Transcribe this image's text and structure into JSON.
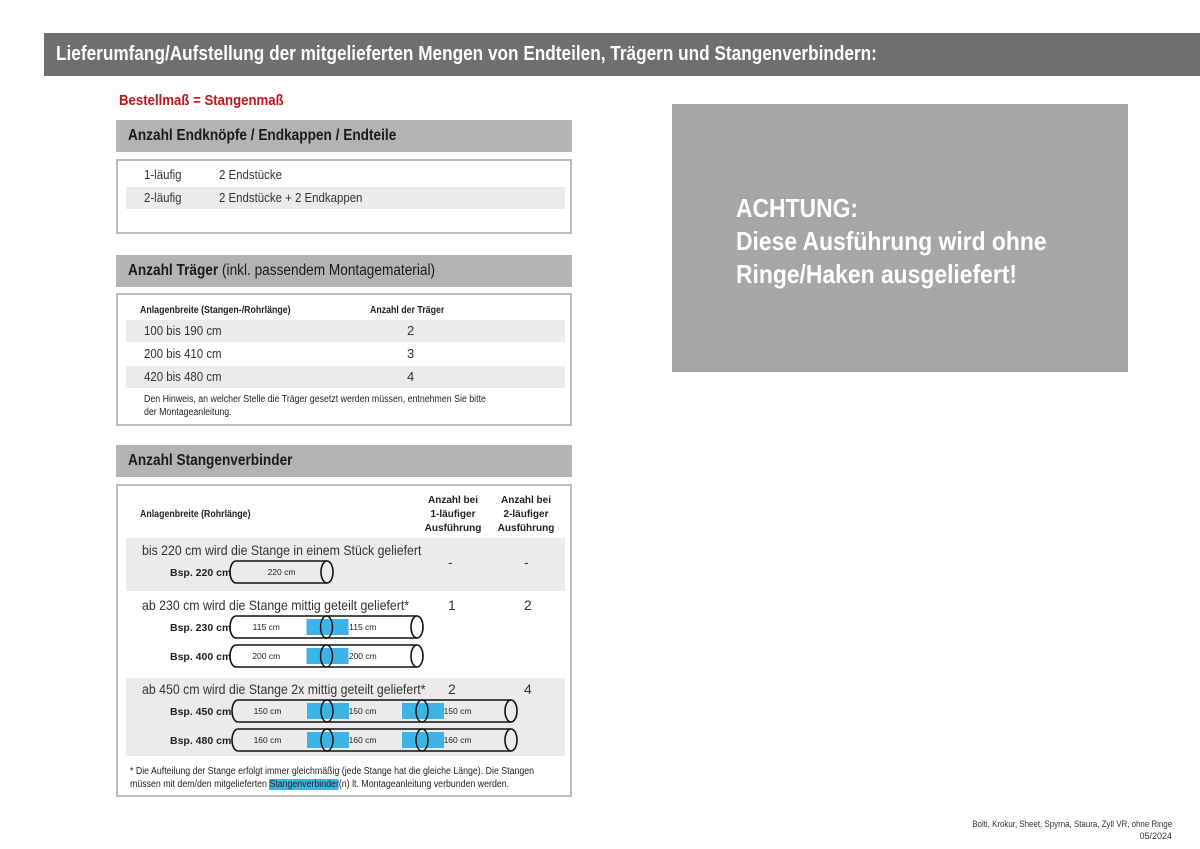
{
  "header": {
    "title": "Lieferumfang/Aufstellung der mitgelieferten Mengen von Endteilen, Trägern und Stangenverbindern:"
  },
  "order_note": "Bestellmaß = Stangenmaß",
  "endteile": {
    "title": "Anzahl Endknöpfe / Endkappen / Endteile",
    "rows": [
      {
        "type": "1-läufig",
        "value": "2 Endstücke"
      },
      {
        "type": "2-läufig",
        "value": "2 Endstücke + 2 Endkappen"
      }
    ]
  },
  "traeger": {
    "title_bold": "Anzahl Träger",
    "title_normal": "(inkl. passendem Montagematerial)",
    "col1": "Anlagenbreite (Stangen-/Rohrlänge)",
    "col2": "Anzahl der Träger",
    "rows": [
      {
        "range": "100 bis 190 cm",
        "count": "2"
      },
      {
        "range": "200 bis 410 cm",
        "count": "3"
      },
      {
        "range": "420 bis 480 cm",
        "count": "4"
      }
    ],
    "note_line1": "Den Hinweis, an welcher Stelle die Träger gesetzt werden müssen, entnehmen Sie bitte",
    "note_line2": "der Montageanleitung."
  },
  "verbinder": {
    "title": "Anzahl Stangenverbinder",
    "col1": "Anlagenbreite (Rohrlänge)",
    "col2": [
      "Anzahl bei",
      "1-läufiger",
      "Ausführung"
    ],
    "col3": [
      "Anzahl bei",
      "2-läufiger",
      "Ausführung"
    ],
    "groups": [
      {
        "text": "bis 220 cm wird die Stange in einem Stück geliefert",
        "one": "-",
        "two": "-",
        "examples": [
          {
            "label": "Bsp. 220 cm",
            "parts": [
              "220 cm"
            ]
          }
        ]
      },
      {
        "text": "ab 230 cm wird die Stange mittig geteilt geliefert*",
        "one": "1",
        "two": "2",
        "examples": [
          {
            "label": "Bsp. 230 cm",
            "parts": [
              "115 cm",
              "115 cm"
            ]
          },
          {
            "label": "Bsp. 400 cm",
            "parts": [
              "200 cm",
              "200 cm"
            ]
          }
        ]
      },
      {
        "text": "ab 450 cm wird die Stange 2x mittig geteilt geliefert*",
        "one": "2",
        "two": "4",
        "examples": [
          {
            "label": "Bsp. 450 cm",
            "parts": [
              "150 cm",
              "150 cm",
              "150 cm"
            ]
          },
          {
            "label": "Bsp. 480 cm",
            "parts": [
              "160 cm",
              "160 cm",
              "160 cm"
            ]
          }
        ]
      }
    ],
    "footnote_line1": "* Die Aufteilung der Stange erfolgt immer gleichmäßig (jede Stange hat die gleiche Länge). Die Stangen",
    "footnote_pre": "müssen mit dem/den mitgelieferten",
    "footnote_highlight": "Stangenverbinder",
    "footnote_post": "(n) lt. Montageanleitung verbunden werden.",
    "connector_color": "#3db4e5"
  },
  "warning": {
    "line1": "ACHTUNG:",
    "line2": "Diese Ausführung wird ohne",
    "line3": "Ringe/Haken ausgeliefert!"
  },
  "footer": {
    "line1": "Bolti, Krokur, Sheet, Spyrna, Staura, Zyll VR, ohne Ringe",
    "line2": "05/2024"
  }
}
